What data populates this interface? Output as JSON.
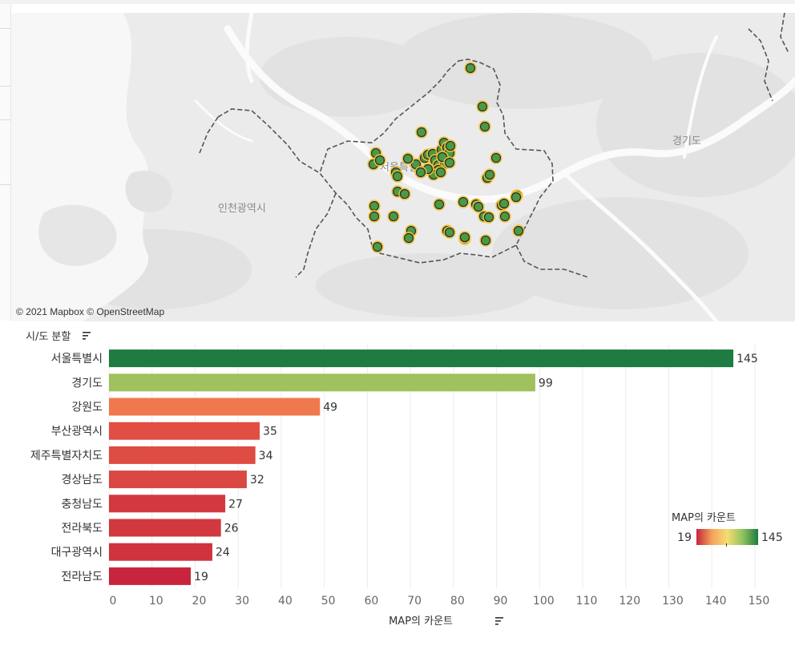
{
  "map": {
    "attribution": "© 2021 Mapbox © OpenStreetMap",
    "labels": {
      "seoul": "서울특별시",
      "incheon": "인천광역시",
      "gyeonggi": "경기도"
    },
    "marker_color": "#4a9a45",
    "marker_ring_color": "#f1c232"
  },
  "chart_data": {
    "type": "bar",
    "orientation": "horizontal",
    "row_header": "시/도 분할",
    "categories": [
      "서울특별시",
      "경기도",
      "강원도",
      "부산광역시",
      "제주특별자치도",
      "경상남도",
      "충청남도",
      "전라북도",
      "대구광역시",
      "전라남도"
    ],
    "values": [
      145,
      99,
      49,
      35,
      34,
      32,
      27,
      26,
      24,
      19
    ],
    "colors": [
      "#1e7b41",
      "#9fc15e",
      "#f0784d",
      "#e14e44",
      "#df4c44",
      "#d94843",
      "#d3393f",
      "#d1383f",
      "#cf333e",
      "#c7253d"
    ],
    "xlabel": "MAP의 카운트",
    "xlim": [
      0,
      150
    ],
    "xticks": [
      0,
      10,
      20,
      30,
      40,
      50,
      60,
      70,
      80,
      90,
      100,
      110,
      120,
      130,
      140,
      150
    ],
    "grid": true,
    "legend": {
      "title": "MAP의 카운트",
      "min": "19",
      "max": "145",
      "placement": "right",
      "gradient": [
        "#c7253d",
        "#f6a15a",
        "#f5dc72",
        "#8fc35f",
        "#1e7b41"
      ]
    }
  }
}
